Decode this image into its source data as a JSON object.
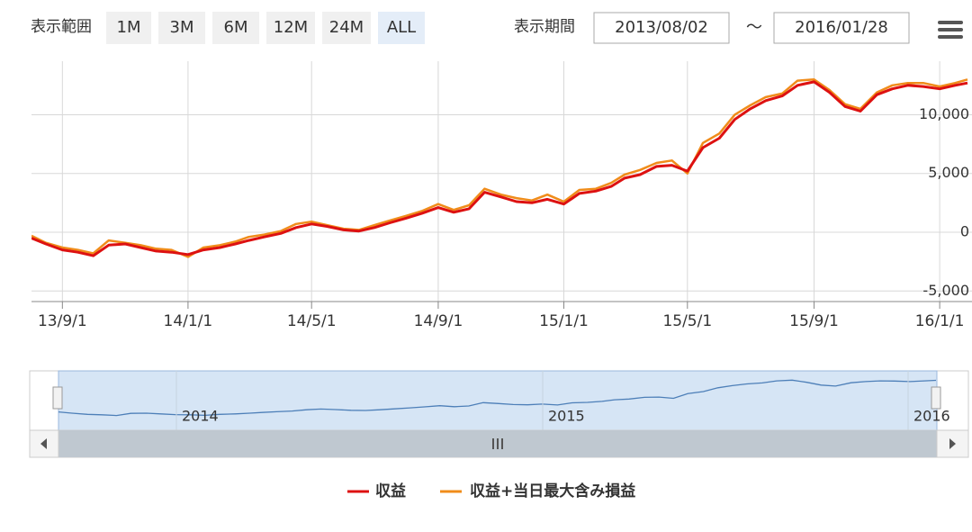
{
  "range_selector": {
    "label": "表示範囲",
    "buttons": [
      "1M",
      "3M",
      "6M",
      "12M",
      "24M",
      "ALL"
    ],
    "active": "ALL",
    "period_label": "表示期間",
    "separator": "～"
  },
  "chart_data": {
    "type": "line",
    "xlim": [
      "2013/08/02",
      "2016/01/28"
    ],
    "ylim": [
      -5900,
      14400
    ],
    "xticks": [
      {
        "value": "2013/09/01",
        "label": "13/9/1"
      },
      {
        "value": "2014/01/01",
        "label": "14/1/1"
      },
      {
        "value": "2014/05/01",
        "label": "14/5/1"
      },
      {
        "value": "2014/09/01",
        "label": "14/9/1"
      },
      {
        "value": "2015/01/01",
        "label": "15/1/1"
      },
      {
        "value": "2015/05/01",
        "label": "15/5/1"
      },
      {
        "value": "2015/09/01",
        "label": "15/9/1"
      },
      {
        "value": "2016/01/01",
        "label": "16/1/1"
      }
    ],
    "yticks": [
      {
        "value": -5000,
        "label": "-5,000"
      },
      0,
      {
        "value": 5000,
        "label": "5,000"
      },
      {
        "value": 10000,
        "label": "10,000"
      }
    ],
    "grid": true,
    "x": [
      "2013/08/02",
      "2013/08/16",
      "2013/09/01",
      "2013/09/16",
      "2013/10/01",
      "2013/10/16",
      "2013/11/01",
      "2013/11/16",
      "2013/12/01",
      "2013/12/16",
      "2014/01/01",
      "2014/01/16",
      "2014/02/01",
      "2014/02/16",
      "2014/03/01",
      "2014/03/16",
      "2014/04/01",
      "2014/04/16",
      "2014/05/01",
      "2014/05/16",
      "2014/06/01",
      "2014/06/16",
      "2014/07/01",
      "2014/07/16",
      "2014/08/01",
      "2014/08/16",
      "2014/09/01",
      "2014/09/16",
      "2014/10/01",
      "2014/10/16",
      "2014/11/01",
      "2014/11/16",
      "2014/12/01",
      "2014/12/16",
      "2015/01/01",
      "2015/01/16",
      "2015/02/01",
      "2015/02/16",
      "2015/03/01",
      "2015/03/16",
      "2015/04/01",
      "2015/04/16",
      "2015/05/01",
      "2015/05/16",
      "2015/06/01",
      "2015/06/16",
      "2015/07/01",
      "2015/07/16",
      "2015/08/01",
      "2015/08/16",
      "2015/09/01",
      "2015/09/16",
      "2015/10/01",
      "2015/10/16",
      "2015/11/01",
      "2015/11/16",
      "2015/12/01",
      "2015/12/16",
      "2016/01/01",
      "2016/01/16",
      "2016/01/28"
    ],
    "series": [
      {
        "name": "収益",
        "color": "#dd1111",
        "values": [
          -500,
          -1000,
          -1500,
          -1700,
          -2000,
          -1100,
          -1000,
          -1300,
          -1600,
          -1700,
          -1900,
          -1500,
          -1300,
          -1000,
          -700,
          -400,
          -100,
          400,
          700,
          500,
          200,
          100,
          400,
          800,
          1200,
          1600,
          2100,
          1700,
          2000,
          3400,
          3000,
          2600,
          2500,
          2800,
          2400,
          3300,
          3500,
          3900,
          4600,
          4900,
          5600,
          5700,
          5200,
          7200,
          8000,
          9600,
          10500,
          11200,
          11600,
          12500,
          12800,
          11900,
          10700,
          10300,
          11700,
          12200,
          12500,
          12400,
          12200,
          12500,
          12700
        ]
      },
      {
        "name": "収益+当日最大含み損益",
        "color": "#f08c1a",
        "values": [
          -300,
          -900,
          -1300,
          -1500,
          -1800,
          -700,
          -900,
          -1100,
          -1400,
          -1500,
          -2100,
          -1300,
          -1100,
          -800,
          -400,
          -200,
          100,
          700,
          900,
          600,
          300,
          200,
          600,
          1000,
          1400,
          1800,
          2400,
          1900,
          2300,
          3700,
          3200,
          2900,
          2700,
          3200,
          2600,
          3600,
          3700,
          4200,
          4900,
          5300,
          5900,
          6100,
          5000,
          7600,
          8400,
          10000,
          10800,
          11500,
          11800,
          12900,
          13000,
          12100,
          10900,
          10500,
          11900,
          12500,
          12700,
          12700,
          12400,
          12700,
          13000
        ]
      }
    ],
    "navigator": {
      "labels": [
        "2014",
        "2015",
        "2016"
      ]
    }
  }
}
